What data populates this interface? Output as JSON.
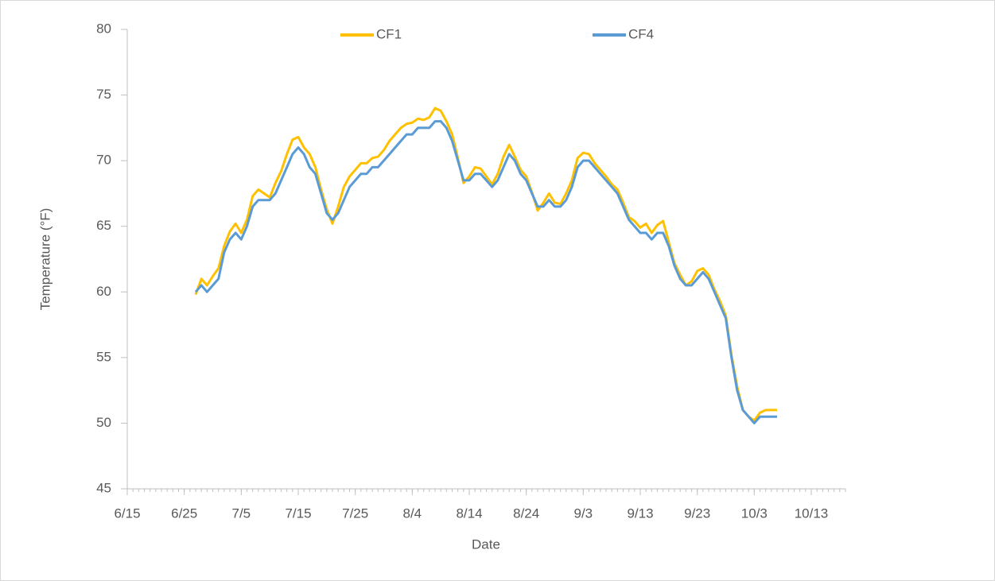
{
  "chart_data": {
    "type": "line",
    "x_label": "Date",
    "y_label": "Temperature (°F)",
    "x": [
      "6/27",
      "6/28",
      "6/29",
      "6/30",
      "7/1",
      "7/2",
      "7/3",
      "7/4",
      "7/5",
      "7/6",
      "7/7",
      "7/8",
      "7/9",
      "7/10",
      "7/11",
      "7/12",
      "7/13",
      "7/14",
      "7/15",
      "7/16",
      "7/17",
      "7/18",
      "7/19",
      "7/20",
      "7/21",
      "7/22",
      "7/23",
      "7/24",
      "7/25",
      "7/26",
      "7/27",
      "7/28",
      "7/29",
      "7/30",
      "7/31",
      "8/1",
      "8/2",
      "8/3",
      "8/4",
      "8/5",
      "8/6",
      "8/7",
      "8/8",
      "8/9",
      "8/10",
      "8/11",
      "8/12",
      "8/13",
      "8/14",
      "8/15",
      "8/16",
      "8/17",
      "8/18",
      "8/19",
      "8/20",
      "8/21",
      "8/22",
      "8/23",
      "8/24",
      "8/25",
      "8/26",
      "8/27",
      "8/28",
      "8/29",
      "8/30",
      "8/31",
      "9/1",
      "9/2",
      "9/3",
      "9/4",
      "9/5",
      "9/6",
      "9/7",
      "9/8",
      "9/9",
      "9/10",
      "9/11",
      "9/12",
      "9/13",
      "9/14",
      "9/15",
      "9/16",
      "9/17",
      "9/18",
      "9/19",
      "9/20",
      "9/21",
      "9/22",
      "9/23",
      "9/24",
      "9/25",
      "9/26",
      "9/27",
      "9/28",
      "9/29",
      "9/30",
      "10/1",
      "10/2",
      "10/3",
      "10/4",
      "10/5",
      "10/6",
      "10/7"
    ],
    "series": [
      {
        "name": "CF1",
        "color": "#ffc000",
        "values": [
          59.8,
          61,
          60.5,
          61.2,
          61.8,
          63.5,
          64.6,
          65.2,
          64.5,
          65.5,
          67.3,
          67.8,
          67.5,
          67.2,
          68.3,
          69.2,
          70.5,
          71.6,
          71.8,
          71,
          70.5,
          69.5,
          67.8,
          66.3,
          65.2,
          66.5,
          68,
          68.8,
          69.3,
          69.8,
          69.8,
          70.2,
          70.3,
          70.8,
          71.5,
          72,
          72.5,
          72.8,
          72.9,
          73.2,
          73.1,
          73.3,
          74,
          73.8,
          73,
          72,
          70.2,
          68.3,
          68.8,
          69.5,
          69.4,
          68.8,
          68.2,
          69,
          70.3,
          71.2,
          70.3,
          69.3,
          68.8,
          67.6,
          66.2,
          66.8,
          67.5,
          66.8,
          66.7,
          67.5,
          68.5,
          70.2,
          70.6,
          70.5,
          69.8,
          69.3,
          68.8,
          68.2,
          67.8,
          66.8,
          65.7,
          65.4,
          64.9,
          65.2,
          64.5,
          65.1,
          65.4,
          63.8,
          62.2,
          61.3,
          60.5,
          60.8,
          61.6,
          61.8,
          61.3,
          60.2,
          59.3,
          58.2,
          55.2,
          52.8,
          51,
          50.5,
          50.2,
          50.8,
          51,
          51,
          51
        ]
      },
      {
        "name": "CF4",
        "color": "#5b9bd5",
        "values": [
          60,
          60.5,
          60,
          60.5,
          61,
          63,
          64,
          64.5,
          64,
          65,
          66.5,
          67,
          67,
          67,
          67.5,
          68.5,
          69.5,
          70.5,
          71,
          70.5,
          69.5,
          69,
          67.5,
          66,
          65.5,
          66,
          67,
          68,
          68.5,
          69,
          69,
          69.5,
          69.5,
          70,
          70.5,
          71,
          71.5,
          72,
          72,
          72.5,
          72.5,
          72.5,
          73,
          73,
          72.5,
          71.5,
          70,
          68.5,
          68.5,
          69,
          69,
          68.5,
          68,
          68.5,
          69.5,
          70.5,
          70,
          69,
          68.5,
          67.5,
          66.5,
          66.5,
          67,
          66.5,
          66.5,
          67,
          68,
          69.5,
          70,
          70,
          69.5,
          69,
          68.5,
          68,
          67.5,
          66.5,
          65.5,
          65,
          64.5,
          64.5,
          64,
          64.5,
          64.5,
          63.5,
          62,
          61,
          60.5,
          60.5,
          61,
          61.5,
          61,
          60,
          59,
          58,
          55,
          52.5,
          51,
          50.5,
          50,
          50.5,
          50.5,
          50.5,
          50.5
        ]
      }
    ],
    "xlim": [
      "6/15",
      "10/19"
    ],
    "xticks": [
      "6/15",
      "6/25",
      "7/5",
      "7/15",
      "7/25",
      "8/4",
      "8/14",
      "8/24",
      "9/3",
      "9/13",
      "9/23",
      "10/3",
      "10/13"
    ],
    "ylim": [
      45,
      80
    ],
    "yticks": [
      45,
      50,
      55,
      60,
      65,
      70,
      75,
      80
    ],
    "legend": "top"
  }
}
